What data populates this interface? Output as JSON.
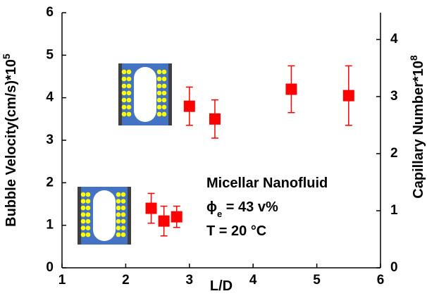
{
  "chart_data": {
    "type": "scatter",
    "xlabel": "L/D",
    "ylabel": "Bubble Velocity(cm/s)*10",
    "ylabel_exponent": "5",
    "y2label": "Capillary Number*10",
    "y2label_exponent": "8",
    "x": [
      2.4,
      2.6,
      2.8,
      3.0,
      3.4,
      4.6,
      5.5
    ],
    "values": [
      1.4,
      1.1,
      1.2,
      3.8,
      3.5,
      4.2,
      4.05
    ],
    "errors": [
      0.35,
      0.35,
      0.25,
      0.45,
      0.45,
      0.55,
      0.7
    ],
    "color": "#ff0000",
    "xlim": [
      1,
      6
    ],
    "xticks": [
      1,
      2,
      3,
      4,
      5,
      6
    ],
    "ylim": [
      0,
      6
    ],
    "yticks": [
      0,
      1,
      2,
      3,
      4,
      5,
      6
    ],
    "y2lim": [
      0,
      4.47
    ],
    "y2ticks": [
      0,
      1,
      2,
      3,
      4
    ],
    "annotation": {
      "line1": "Micellar Nanofluid",
      "line2": "ϕ",
      "line2_sub": "e",
      "line2_rest": " = 43 v%",
      "line3": "T = 20 °C"
    }
  }
}
